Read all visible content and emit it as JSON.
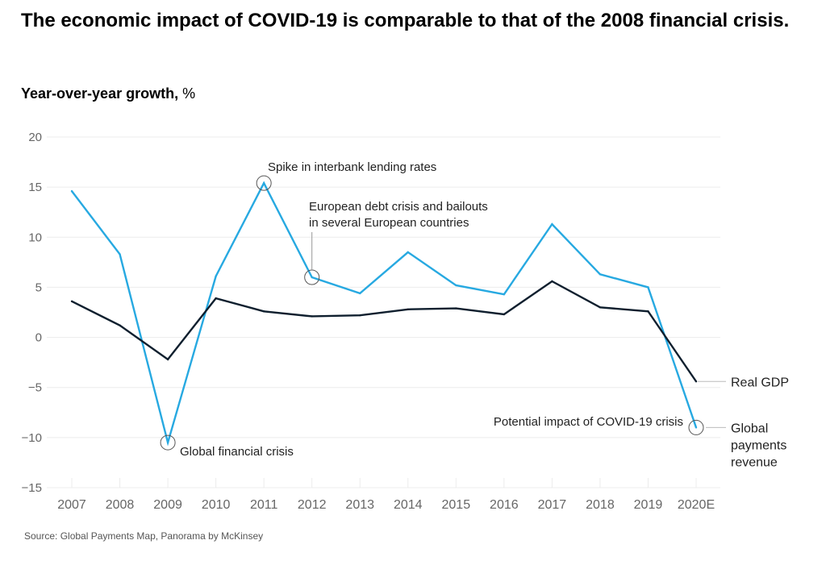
{
  "title": "The economic impact of COVID-19 is comparable to that of the 2008 financial crisis.",
  "subtitle_bold": "Year-over-year growth,",
  "subtitle_unit": "%",
  "source": "Source: Global Payments Map, Panorama by McKinsey",
  "chart_data": {
    "type": "line",
    "x": [
      "2007",
      "2008",
      "2009",
      "2010",
      "2011",
      "2012",
      "2013",
      "2014",
      "2015",
      "2016",
      "2017",
      "2018",
      "2019",
      "2020E"
    ],
    "ylim": [
      -15,
      20
    ],
    "yticks": [
      20,
      15,
      10,
      5,
      0,
      -5,
      -10,
      -15
    ],
    "ytick_labels": [
      "20",
      "15",
      "10",
      "5",
      "0",
      "−5",
      "−10",
      "−15"
    ],
    "grid": true,
    "series": [
      {
        "name": "Global payments revenue",
        "name_lines": [
          "Global",
          "payments",
          "revenue"
        ],
        "color": "#27a9e1",
        "values": [
          14.6,
          8.3,
          -10.5,
          6.1,
          15.4,
          6.0,
          4.4,
          8.5,
          5.2,
          4.3,
          11.3,
          6.3,
          5.0,
          -9.0
        ]
      },
      {
        "name": "Real GDP",
        "name_lines": [
          "Real GDP"
        ],
        "color": "#0f1f2e",
        "values": [
          3.6,
          1.2,
          -2.2,
          3.9,
          2.6,
          2.1,
          2.2,
          2.8,
          2.9,
          2.3,
          5.6,
          3.0,
          2.6,
          -4.4
        ]
      }
    ],
    "annotations": [
      {
        "text": [
          "Spike in interbank lending rates"
        ],
        "x": "2011",
        "series": 0
      },
      {
        "text": [
          "European debt crisis and bailouts",
          "in several European countries"
        ],
        "x": "2012",
        "series": 0
      },
      {
        "text": [
          "Global financial crisis"
        ],
        "x": "2009",
        "series": 0
      },
      {
        "text": [
          "Potential impact of COVID-19 crisis"
        ],
        "x": "2020E",
        "series": 0
      }
    ]
  }
}
